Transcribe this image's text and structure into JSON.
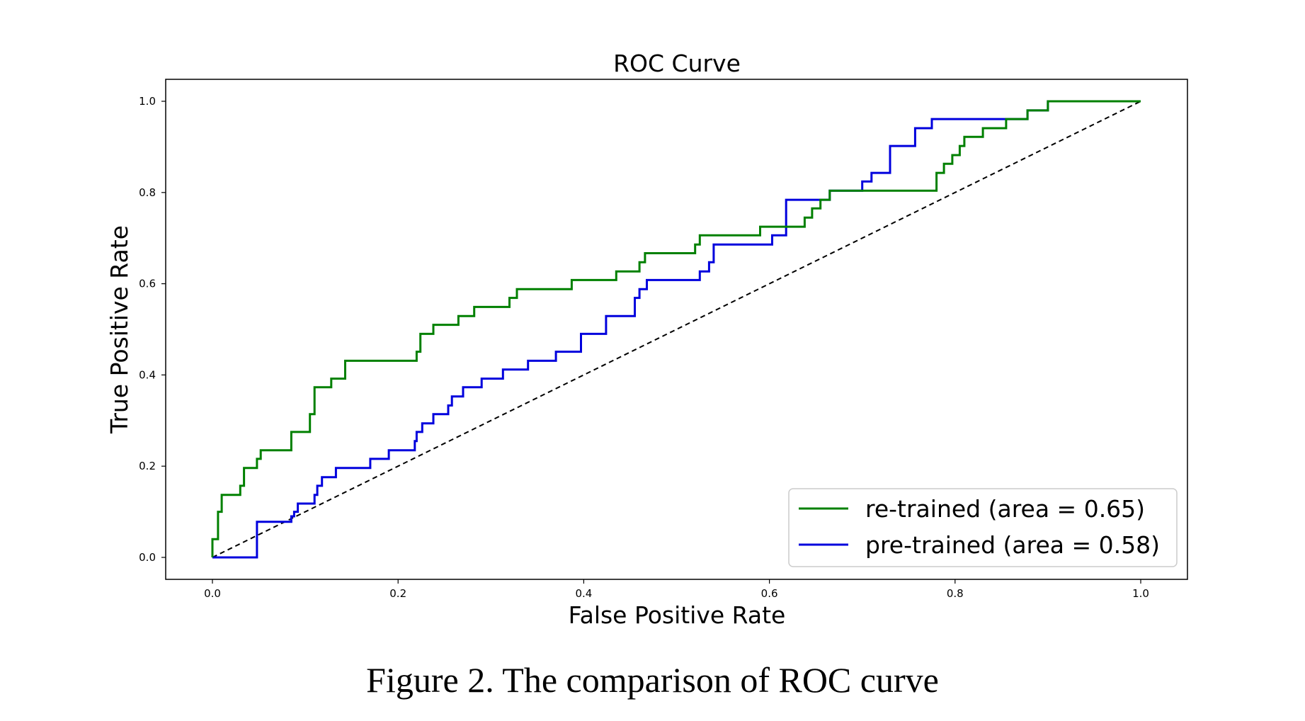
{
  "caption": "Figure 2. The comparison of ROC curve",
  "chart_data": {
    "type": "line",
    "title": "ROC Curve",
    "xlabel": "False Positive Rate",
    "ylabel": "True Positive Rate",
    "xlim": [
      -0.05,
      1.05
    ],
    "ylim": [
      -0.05,
      1.05
    ],
    "xticks": [
      "0.0",
      "0.2",
      "0.4",
      "0.6",
      "0.8",
      "1.0"
    ],
    "yticks": [
      "0.0",
      "0.2",
      "0.4",
      "0.6",
      "0.8",
      "1.0"
    ],
    "grid": false,
    "legend_position": "lower-right",
    "series": [
      {
        "name": "re-trained (area = 0.65)",
        "color": "#008000",
        "style": "step",
        "x": [
          0.0,
          0.0,
          0.006,
          0.006,
          0.01,
          0.01,
          0.03,
          0.03,
          0.034,
          0.034,
          0.048,
          0.048,
          0.052,
          0.052,
          0.085,
          0.085,
          0.105,
          0.105,
          0.11,
          0.11,
          0.128,
          0.128,
          0.143,
          0.143,
          0.22,
          0.22,
          0.224,
          0.224,
          0.238,
          0.238,
          0.265,
          0.265,
          0.282,
          0.282,
          0.32,
          0.32,
          0.328,
          0.328,
          0.387,
          0.387,
          0.435,
          0.435,
          0.46,
          0.46,
          0.466,
          0.466,
          0.52,
          0.52,
          0.525,
          0.525,
          0.59,
          0.59,
          0.615,
          0.615,
          0.638,
          0.638,
          0.646,
          0.646,
          0.655,
          0.655,
          0.665,
          0.665,
          0.78,
          0.78,
          0.788,
          0.788,
          0.797,
          0.797,
          0.805,
          0.805,
          0.81,
          0.81,
          0.83,
          0.83,
          0.855,
          0.855,
          0.878,
          0.878,
          0.9,
          0.9,
          0.906,
          0.906,
          1.0
        ],
        "y": [
          0.0,
          0.04,
          0.04,
          0.1,
          0.1,
          0.137,
          0.137,
          0.157,
          0.157,
          0.196,
          0.196,
          0.216,
          0.216,
          0.235,
          0.235,
          0.275,
          0.275,
          0.314,
          0.314,
          0.373,
          0.373,
          0.392,
          0.392,
          0.431,
          0.431,
          0.451,
          0.451,
          0.49,
          0.49,
          0.51,
          0.51,
          0.529,
          0.529,
          0.549,
          0.549,
          0.569,
          0.569,
          0.588,
          0.588,
          0.608,
          0.608,
          0.627,
          0.627,
          0.647,
          0.647,
          0.667,
          0.667,
          0.686,
          0.686,
          0.706,
          0.706,
          0.725,
          0.725,
          0.725,
          0.725,
          0.745,
          0.745,
          0.765,
          0.765,
          0.784,
          0.784,
          0.804,
          0.804,
          0.843,
          0.843,
          0.863,
          0.863,
          0.882,
          0.882,
          0.902,
          0.902,
          0.922,
          0.922,
          0.941,
          0.941,
          0.961,
          0.961,
          0.98,
          0.98,
          1.0,
          1.0,
          1.0,
          1.0
        ]
      },
      {
        "name": "pre-trained (area = 0.58)",
        "color": "#0000dd",
        "style": "step",
        "x": [
          0.0,
          0.048,
          0.048,
          0.085,
          0.085,
          0.088,
          0.088,
          0.092,
          0.092,
          0.11,
          0.11,
          0.113,
          0.113,
          0.118,
          0.118,
          0.133,
          0.133,
          0.17,
          0.17,
          0.19,
          0.19,
          0.218,
          0.218,
          0.22,
          0.22,
          0.226,
          0.226,
          0.238,
          0.238,
          0.254,
          0.254,
          0.258,
          0.258,
          0.27,
          0.27,
          0.29,
          0.29,
          0.313,
          0.313,
          0.34,
          0.34,
          0.37,
          0.37,
          0.397,
          0.397,
          0.424,
          0.424,
          0.455,
          0.455,
          0.46,
          0.46,
          0.468,
          0.468,
          0.525,
          0.525,
          0.535,
          0.535,
          0.54,
          0.54,
          0.603,
          0.603,
          0.618,
          0.618,
          0.665,
          0.665,
          0.7,
          0.7,
          0.71,
          0.71,
          0.73,
          0.73,
          0.757,
          0.757,
          0.775,
          0.775,
          0.878,
          0.878,
          0.9,
          0.9,
          0.915,
          0.915,
          1.0
        ],
        "y": [
          0.0,
          0.0,
          0.078,
          0.078,
          0.09,
          0.09,
          0.1,
          0.1,
          0.118,
          0.118,
          0.137,
          0.137,
          0.157,
          0.157,
          0.176,
          0.176,
          0.196,
          0.196,
          0.216,
          0.216,
          0.235,
          0.235,
          0.255,
          0.255,
          0.275,
          0.275,
          0.294,
          0.294,
          0.314,
          0.314,
          0.333,
          0.333,
          0.353,
          0.353,
          0.373,
          0.373,
          0.392,
          0.392,
          0.412,
          0.412,
          0.431,
          0.431,
          0.451,
          0.451,
          0.49,
          0.49,
          0.529,
          0.529,
          0.569,
          0.569,
          0.588,
          0.588,
          0.608,
          0.608,
          0.627,
          0.627,
          0.647,
          0.647,
          0.686,
          0.686,
          0.706,
          0.706,
          0.784,
          0.784,
          0.804,
          0.804,
          0.824,
          0.824,
          0.843,
          0.843,
          0.902,
          0.902,
          0.941,
          0.941,
          0.961,
          0.961,
          0.98,
          0.98,
          1.0,
          1.0,
          1.0,
          1.0
        ]
      },
      {
        "name": "",
        "color": "#000000",
        "style": "dashed",
        "x": [
          0.0,
          1.0
        ],
        "y": [
          0.0,
          1.0
        ]
      }
    ]
  }
}
